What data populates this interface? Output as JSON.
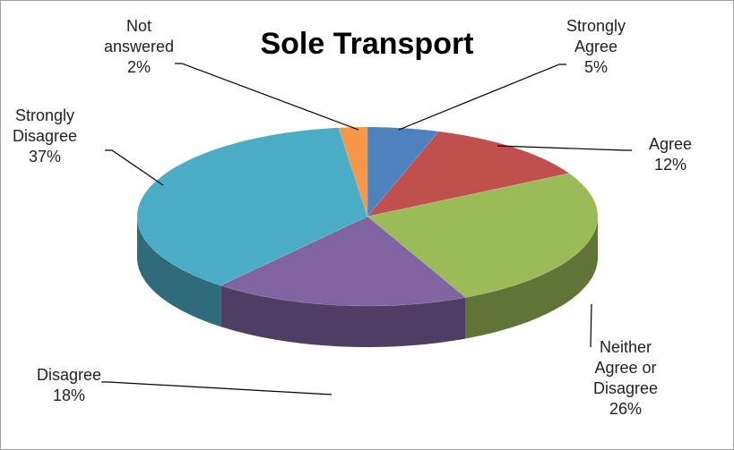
{
  "chart_data": {
    "type": "pie3d",
    "title": "Sole Transport",
    "categories": [
      "Strongly Agree",
      "Agree",
      "Neither Agree or Disagree",
      "Disagree",
      "Strongly Disagree",
      "Not answered"
    ],
    "values": [
      5,
      12,
      26,
      18,
      37,
      2
    ],
    "value_labels": [
      "5%",
      "12%",
      "26%",
      "18%",
      "37%",
      "2%"
    ],
    "colors": [
      "#4f81bd",
      "#c0504d",
      "#9bbb59",
      "#8064a2",
      "#4bacc6",
      "#f79646"
    ]
  }
}
